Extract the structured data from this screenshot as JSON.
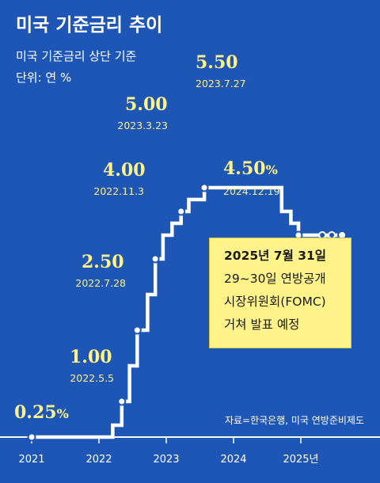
{
  "title": "미국 기준금리 추이",
  "subtitle": "미국 기준금리 상단 기준",
  "unit": "단위: 연 %",
  "source": "자료=한국은행, 미국 연방준비제도",
  "callout": {
    "title": "2025년 7월 31일",
    "lines": [
      "29~30일 연방공개",
      "시장위원회(FOMC)",
      "거쳐 발표 예정"
    ]
  },
  "colors": {
    "background": "#1d56b4",
    "line": "#ffffff",
    "highlight": "#fff38a"
  },
  "chart_data": {
    "type": "line",
    "step": true,
    "title": "미국 기준금리 추이",
    "subtitle": "미국 기준금리 상단 기준",
    "ylabel": "단위: 연 %",
    "x_ticks": [
      "2021",
      "2022",
      "2023",
      "2024",
      "2025년"
    ],
    "points": [
      [
        "2021-01-01",
        0.25
      ],
      [
        "2022-03-17",
        0.5
      ],
      [
        "2022-05-05",
        1.0
      ],
      [
        "2022-06-16",
        1.75
      ],
      [
        "2022-07-28",
        2.5
      ],
      [
        "2022-09-22",
        3.25
      ],
      [
        "2022-11-03",
        4.0
      ],
      [
        "2022-12-15",
        4.5
      ],
      [
        "2023-02-02",
        4.75
      ],
      [
        "2023-03-23",
        5.0
      ],
      [
        "2023-05-04",
        5.25
      ],
      [
        "2023-07-27",
        5.5
      ],
      [
        "2024-09-19",
        5.0
      ],
      [
        "2024-11-08",
        4.75
      ],
      [
        "2024-12-19",
        4.5
      ],
      [
        "2025-07-31",
        4.5
      ]
    ],
    "labels": [
      {
        "value": "0.25",
        "suffix": "%",
        "date": ""
      },
      {
        "value": "1.00",
        "suffix": "",
        "date": "2022.5.5"
      },
      {
        "value": "2.50",
        "suffix": "",
        "date": "2022.7.28"
      },
      {
        "value": "4.00",
        "suffix": "",
        "date": "2022.11.3"
      },
      {
        "value": "5.00",
        "suffix": "",
        "date": "2023.3.23"
      },
      {
        "value": "5.50",
        "suffix": "",
        "date": "2023.7.27"
      },
      {
        "value": "4.50",
        "suffix": "%",
        "date": "2024.12.19"
      }
    ]
  }
}
